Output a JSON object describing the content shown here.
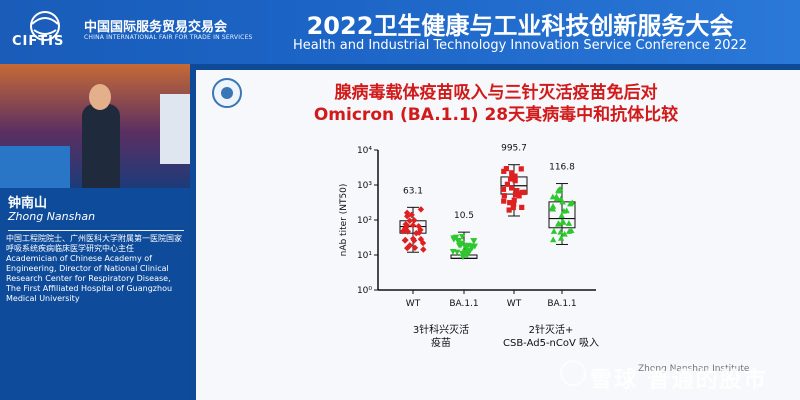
{
  "header": {
    "logo_text": "CIFTIS",
    "fair_name_cn": "中国国际服务贸易交易会",
    "fair_name_en": "CHINA INTERNATIONAL FAIR FOR TRADE IN SERVICES",
    "conference_title_cn": "2022卫生健康与工业科技创新服务大会",
    "conference_title_en": "Health and Industrial Technology Innovation Service Conference 2022"
  },
  "speaker": {
    "name_cn": "钟南山",
    "name_en": "Zhong Nanshan",
    "title_cn": "中国工程院院士、广州医科大学附属第一医院国家呼吸系统疾病临床医学研究中心主任",
    "title_en": "Academician of Chinese Academy of Engineering, Director of National Clinical Research Center for Respiratory Disease, The First Affiliated Hospital of Guangzhou Medical University"
  },
  "slide": {
    "title_line1": "腺病毒载体疫苗吸入与三针灭活疫苗免后对",
    "title_line2": "Omicron (BA.1.1) 28天真病毒中和抗体比较",
    "group1_label_l1": "3针科兴灭活",
    "group1_label_l2": "疫苗",
    "group2_label_l1": "2针灭活+",
    "group2_label_l2": "CSB-Ad5-nCoV 吸入"
  },
  "chart_data": {
    "type": "scatter",
    "title": "",
    "ylabel": "nAb titer (NT50)",
    "yscale": "log",
    "ylim": [
      1,
      10000
    ],
    "y_ticks": [
      "10⁰",
      "10¹",
      "10²",
      "10³",
      "10⁴"
    ],
    "categories": [
      "WT",
      "BA.1.1",
      "WT",
      "BA.1.1"
    ],
    "series": [
      {
        "category": "WT",
        "group": "3针科兴灭活疫苗",
        "color": "#e02020",
        "marker": "diamond",
        "gmt_label": "63.1",
        "gmt": 63.1,
        "box": {
          "min": 12,
          "q1": 42,
          "median": 65,
          "q3": 95,
          "max": 230
        }
      },
      {
        "category": "BA.1.1",
        "group": "3针科兴灭活疫苗",
        "color": "#2ec82e",
        "marker": "triangle-down",
        "gmt_label": "10.5",
        "gmt": 10.5,
        "box": {
          "min": 8,
          "q1": 8,
          "median": 8,
          "q3": 10,
          "max": 45
        }
      },
      {
        "category": "WT",
        "group": "2针灭活+CSB-Ad5-nCoV 吸入",
        "color": "#e02020",
        "marker": "square",
        "gmt_label": "995.7",
        "gmt": 995.7,
        "box": {
          "min": 130,
          "q1": 550,
          "median": 950,
          "q3": 1700,
          "max": 3800
        }
      },
      {
        "category": "BA.1.1",
        "group": "2针灭活+CSB-Ad5-nCoV 吸入",
        "color": "#2ec82e",
        "marker": "triangle-up",
        "gmt_label": "116.8",
        "gmt": 116.8,
        "box": {
          "min": 20,
          "q1": 60,
          "median": 110,
          "q3": 330,
          "max": 1100
        }
      }
    ]
  },
  "watermark": {
    "main": "雪球 普通的股市",
    "small": "Zhong Nanshan Institute"
  }
}
